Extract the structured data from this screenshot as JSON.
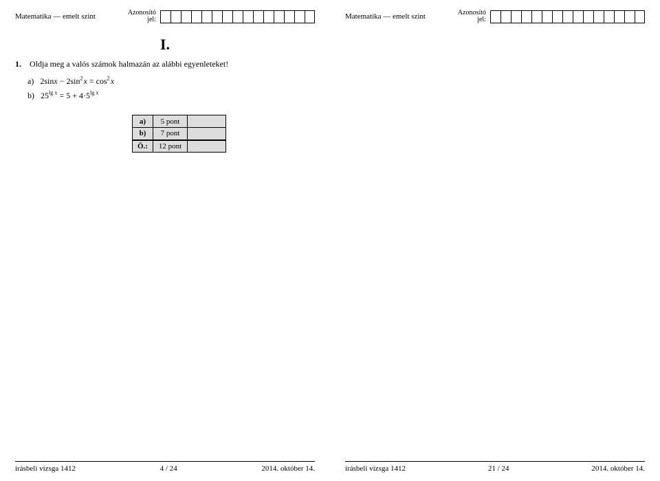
{
  "header": {
    "subject": "Matematika — emelt szint",
    "id_label_line1": "Azonosító",
    "id_label_line2": "jel:",
    "id_box_count": 15
  },
  "left_page": {
    "section": "I.",
    "q_number": "1.",
    "q_text": "Oldja meg a valós számok halmazán az alábbi egyenleteket!",
    "sub_a_label": "a)",
    "sub_a_mathA": "2sin",
    "sub_a_mathB": " − 2sin",
    "sub_a_mathC": " = cos",
    "sub_a_var": "x",
    "sub_b_label": "b)",
    "sub_b_base1": "25",
    "sub_b_exp": "lg x",
    "sub_b_mid": " = 5 + 4·5",
    "score": {
      "rows": [
        {
          "label": "a)",
          "points": "5 pont"
        },
        {
          "label": "b)",
          "points": "7 pont"
        }
      ],
      "total_label": "Ö.:",
      "total_points": "12 pont"
    },
    "footer": {
      "left": "írásbeli vizsga 1412",
      "center": "4 / 24",
      "right": "2014. október 14."
    }
  },
  "right_page": {
    "footer": {
      "left": "írásbeli vizsga 1412",
      "center": "21 / 24",
      "right": "2014. október 14."
    }
  }
}
